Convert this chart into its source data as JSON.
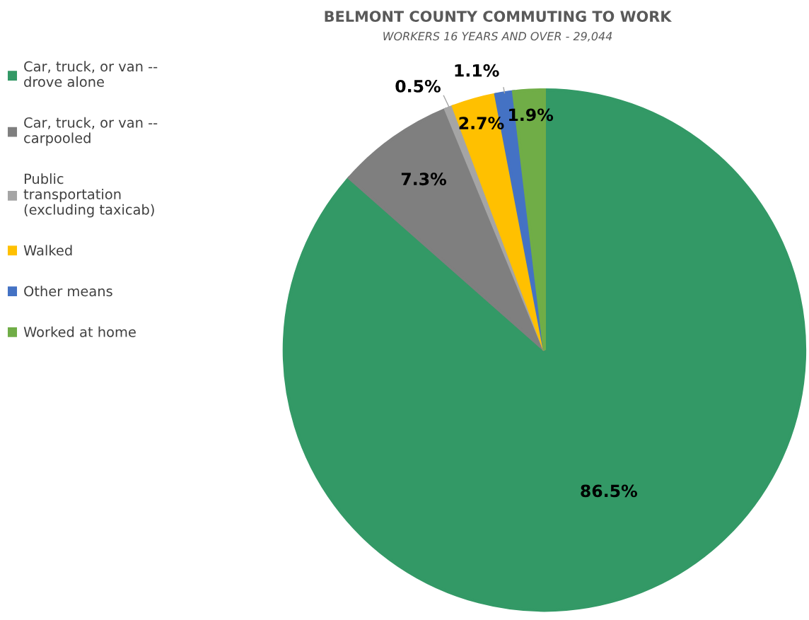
{
  "chart_data": {
    "type": "pie",
    "title": "BELMONT COUNTY COMMUTING TO WORK",
    "subtitle": "WORKERS 16 YEARS AND OVER - 29,044",
    "categories": [
      "Car, truck, or van --\ndrove alone",
      "Car, truck, or van --\ncarpooled",
      "Public\ntransportation\n(excluding taxicab)",
      "Walked",
      "Other means",
      "Worked at home"
    ],
    "values": [
      86.5,
      7.3,
      0.5,
      2.7,
      1.1,
      1.9
    ],
    "colors": [
      "#339966",
      "#7f7f7f",
      "#a5a5a5",
      "#ffc000",
      "#4472c4",
      "#70ad47"
    ],
    "value_labels": [
      "86.5%",
      "7.3%",
      "0.5%",
      "2.7%",
      "1.1%",
      "1.9%"
    ],
    "legend": "left"
  }
}
